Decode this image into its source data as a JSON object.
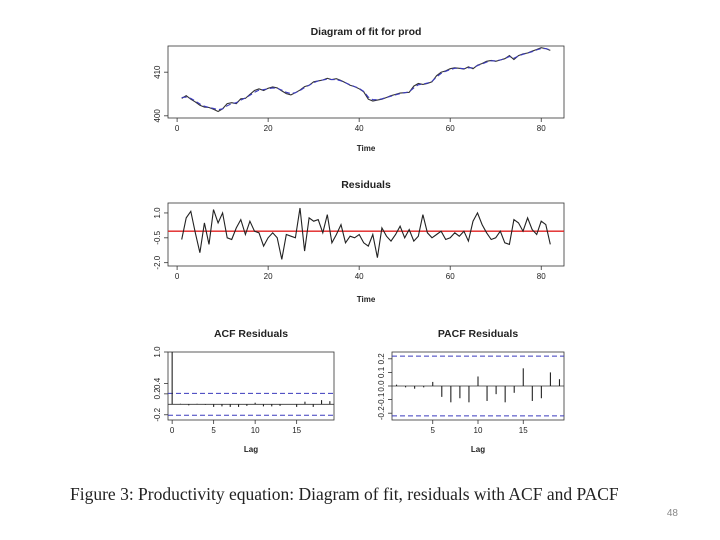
{
  "caption": "Figure 3: Productivity equation: Diagram of fit, residuals with ACF and PACF",
  "page_number": "48",
  "chart_data": [
    {
      "type": "line",
      "title": "Diagram of fit for prod",
      "xlabel": "Time",
      "ylabel": "",
      "xlim": [
        -2,
        85
      ],
      "ylim": [
        399.5,
        416
      ],
      "xticks": [
        0,
        20,
        40,
        60,
        80
      ],
      "yticks": [
        400,
        410
      ],
      "series": [
        {
          "color": "#333333",
          "dash": "none",
          "x": [
            1,
            2,
            3,
            4,
            5,
            6,
            7,
            8,
            9,
            10,
            11,
            12,
            13,
            14,
            15,
            16,
            17,
            18,
            19,
            20,
            21,
            22,
            23,
            24,
            25,
            26,
            27,
            28,
            29,
            30,
            31,
            32,
            33,
            34,
            35,
            36,
            37,
            38,
            39,
            40,
            41,
            42,
            43,
            44,
            45,
            46,
            47,
            48,
            49,
            50,
            51,
            52,
            53,
            54,
            55,
            56,
            57,
            58,
            59,
            60,
            61,
            62,
            63,
            64,
            65,
            66,
            67,
            68,
            69,
            70,
            71,
            72,
            73,
            74,
            75,
            76,
            77,
            78,
            79,
            80,
            81,
            82
          ],
          "y": [
            404.0,
            404.6,
            403.8,
            403.2,
            402.4,
            402.0,
            401.9,
            401.5,
            401.0,
            401.6,
            402.8,
            403.0,
            402.8,
            403.9,
            404.0,
            404.9,
            405.8,
            406.2,
            405.8,
            406.3,
            406.6,
            406.4,
            405.7,
            405.1,
            404.8,
            405.3,
            405.9,
            406.7,
            407.0,
            407.8,
            408.0,
            408.2,
            408.6,
            408.3,
            408.5,
            408.1,
            407.6,
            407.0,
            406.7,
            406.2,
            405.5,
            403.8,
            403.4,
            403.6,
            403.8,
            404.2,
            404.6,
            404.9,
            405.2,
            405.3,
            405.4,
            406.8,
            407.4,
            407.2,
            407.4,
            407.8,
            409.2,
            410.0,
            410.3,
            410.8,
            411.0,
            410.9,
            410.7,
            411.2,
            410.8,
            411.6,
            412.0,
            412.5,
            412.7,
            412.5,
            412.8,
            413.1,
            413.8,
            412.9,
            413.8,
            414.2,
            414.4,
            414.8,
            415.2,
            415.6,
            415.4,
            415.0
          ]
        },
        {
          "color": "#3b3bbd",
          "dash": "5,3",
          "x": [
            1,
            2,
            3,
            4,
            5,
            6,
            7,
            8,
            9,
            10,
            11,
            12,
            13,
            14,
            15,
            16,
            17,
            18,
            19,
            20,
            21,
            22,
            23,
            24,
            25,
            26,
            27,
            28,
            29,
            30,
            31,
            32,
            33,
            34,
            35,
            36,
            37,
            38,
            39,
            40,
            41,
            42,
            43,
            44,
            45,
            46,
            47,
            48,
            49,
            50,
            51,
            52,
            53,
            54,
            55,
            56,
            57,
            58,
            59,
            60,
            61,
            62,
            63,
            64,
            65,
            66,
            67,
            68,
            69,
            70,
            71,
            72,
            73,
            74,
            75,
            76,
            77,
            78,
            79,
            80,
            81,
            82
          ],
          "y": [
            404.2,
            404.3,
            404.0,
            403.4,
            402.7,
            402.2,
            401.9,
            401.7,
            401.4,
            401.6,
            402.3,
            402.8,
            403.0,
            403.6,
            404.1,
            404.7,
            405.4,
            405.9,
            406.0,
            406.2,
            406.4,
            406.3,
            405.9,
            405.4,
            405.1,
            405.3,
            405.8,
            406.5,
            407.0,
            407.6,
            408.0,
            408.2,
            408.4,
            408.3,
            408.3,
            408.0,
            407.6,
            407.1,
            406.7,
            406.3,
            405.6,
            404.3,
            403.7,
            403.7,
            403.9,
            404.2,
            404.5,
            404.8,
            405.1,
            405.3,
            405.5,
            406.4,
            407.1,
            407.3,
            407.5,
            407.9,
            408.9,
            409.7,
            410.2,
            410.6,
            410.9,
            410.9,
            410.8,
            411.0,
            411.0,
            411.5,
            411.9,
            412.3,
            412.6,
            412.6,
            412.8,
            413.1,
            413.6,
            413.2,
            413.7,
            414.1,
            414.4,
            414.7,
            415.1,
            415.4,
            415.4,
            415.1
          ]
        }
      ]
    },
    {
      "type": "line",
      "title": "Residuals",
      "xlabel": "Time",
      "ylabel": "",
      "xlim": [
        -2,
        85
      ],
      "ylim": [
        -2.2,
        1.6
      ],
      "xticks": [
        0,
        20,
        40,
        60,
        80
      ],
      "yticks": [
        -2.0,
        -0.5,
        1.0
      ],
      "ytick_labels": [
        "-2.0",
        "-0.5",
        "1.0"
      ],
      "hline": {
        "y": -0.1,
        "color": "#e02020"
      },
      "series": [
        {
          "color": "#222222",
          "x": [
            1,
            2,
            3,
            4,
            5,
            6,
            7,
            8,
            9,
            10,
            11,
            12,
            13,
            14,
            15,
            16,
            17,
            18,
            19,
            20,
            21,
            22,
            23,
            24,
            25,
            26,
            27,
            28,
            29,
            30,
            31,
            32,
            33,
            34,
            35,
            36,
            37,
            38,
            39,
            40,
            41,
            42,
            43,
            44,
            45,
            46,
            47,
            48,
            49,
            50,
            51,
            52,
            53,
            54,
            55,
            56,
            57,
            58,
            59,
            60,
            61,
            62,
            63,
            64,
            65,
            66,
            67,
            68,
            69,
            70,
            71,
            72,
            73,
            74,
            75,
            76,
            77,
            78,
            79,
            80,
            81,
            82
          ],
          "y": [
            -0.6,
            0.7,
            1.1,
            -0.2,
            -1.4,
            0.4,
            -0.9,
            1.2,
            0.4,
            1.0,
            -0.5,
            -0.6,
            0.1,
            0.6,
            -0.3,
            0.5,
            -0.1,
            -0.2,
            -1.0,
            -0.5,
            -0.2,
            -0.5,
            -1.8,
            -0.3,
            -0.4,
            -0.5,
            1.3,
            -1.3,
            0.7,
            0.5,
            0.6,
            -0.2,
            0.9,
            -0.8,
            -0.3,
            0.3,
            -0.8,
            -0.4,
            -0.5,
            -0.3,
            -0.8,
            -1.0,
            -0.3,
            -1.7,
            0.1,
            -0.4,
            -0.7,
            -0.3,
            0.2,
            -0.5,
            0.0,
            -0.7,
            -0.4,
            0.9,
            -0.2,
            -0.5,
            -0.3,
            -0.1,
            -0.6,
            -0.5,
            -0.2,
            -0.4,
            -0.1,
            -0.7,
            0.5,
            1.0,
            0.3,
            -0.2,
            -0.6,
            -0.5,
            -0.1,
            -0.8,
            -0.9,
            0.6,
            0.4,
            -0.1,
            0.7,
            0.0,
            -0.3,
            0.5,
            0.3,
            -0.9
          ]
        }
      ]
    },
    {
      "type": "bar",
      "title": "ACF Residuals",
      "xlabel": "Lag",
      "ylabel": "",
      "xlim": [
        -0.5,
        19.5
      ],
      "ylim": [
        -0.3,
        1.0
      ],
      "xticks": [
        0,
        5,
        10,
        15
      ],
      "yticks": [
        -0.2,
        0.2,
        0.4,
        1.0
      ],
      "ytick_labels": [
        "-0.2",
        "0.2",
        "0.4",
        "1.0"
      ],
      "ci": [
        0.21,
        -0.21
      ],
      "lags": [
        0,
        1,
        2,
        3,
        4,
        5,
        6,
        7,
        8,
        9,
        10,
        11,
        12,
        13,
        14,
        15,
        16,
        17,
        18,
        19
      ],
      "values": [
        1.0,
        0.01,
        -0.02,
        0.01,
        -0.01,
        -0.05,
        -0.04,
        -0.05,
        -0.05,
        -0.03,
        0.03,
        -0.04,
        -0.04,
        -0.03,
        0.0,
        -0.05,
        0.05,
        -0.05,
        0.08,
        0.06
      ]
    },
    {
      "type": "bar",
      "title": "PACF Residuals",
      "xlabel": "Lag",
      "ylabel": "",
      "xlim": [
        0.5,
        19.5
      ],
      "ylim": [
        -0.25,
        0.25
      ],
      "xticks": [
        5,
        10,
        15
      ],
      "yticks": [
        -0.2,
        -0.1,
        0.0,
        0.1,
        0.2
      ],
      "ytick_labels": [
        "-0.2",
        "-0.1",
        "0.0",
        "0.1",
        "0.2"
      ],
      "ci": [
        0.22,
        -0.22
      ],
      "lags": [
        1,
        2,
        3,
        4,
        5,
        6,
        7,
        8,
        9,
        10,
        11,
        12,
        13,
        14,
        15,
        16,
        17,
        18,
        19
      ],
      "values": [
        0.01,
        -0.01,
        -0.02,
        -0.01,
        0.03,
        -0.08,
        -0.12,
        -0.09,
        -0.12,
        0.07,
        -0.11,
        -0.06,
        -0.12,
        -0.05,
        0.13,
        -0.11,
        -0.09,
        0.1,
        0.05
      ]
    }
  ]
}
